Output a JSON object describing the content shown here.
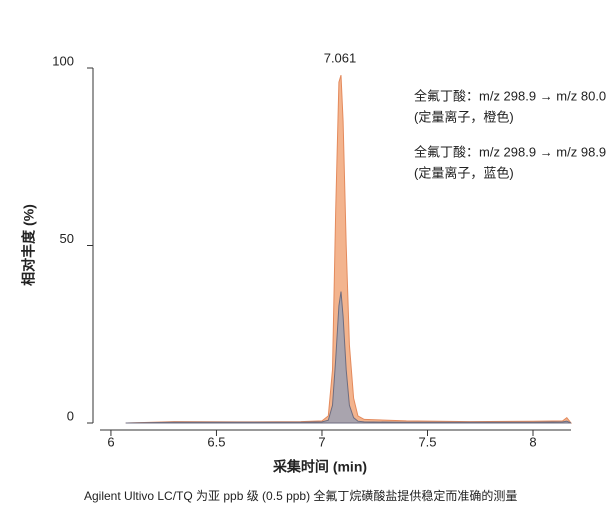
{
  "chart_data": {
    "type": "area",
    "peak_label": "7.061",
    "y_label": "相对丰度 (%)",
    "x_label": "采集时间 (min)",
    "caption": "Agilent Ultivo LC/TQ 为亚 ppb 级 (0.5 ppb) 全氟丁烷磺酸盐提供稳定而准确的测量",
    "x": [
      6.07,
      6.3,
      6.6,
      6.9,
      7.0,
      7.03,
      7.05,
      7.065,
      7.08,
      7.09,
      7.1,
      7.115,
      7.13,
      7.15,
      7.17,
      7.2,
      7.4,
      7.7,
      8.0,
      8.14,
      8.16,
      8.18
    ],
    "series": [
      {
        "name": "全氟丁酸：m/z 298.9 → m/z 80.0",
        "note": "(定量离子，橙色)",
        "color": "#f3b48e",
        "stroke": "#e48a5c",
        "values": [
          0,
          0.4,
          0.3,
          0.4,
          0.6,
          2,
          15,
          60,
          96,
          98,
          85,
          50,
          22,
          7,
          2,
          1,
          0.6,
          0.4,
          0.5,
          0.6,
          1.5,
          0
        ]
      },
      {
        "name": "全氟丁酸：m/z 298.9 → m/z 98.9",
        "note": "(定量离子，蓝色)",
        "color": "#a4a3b0",
        "stroke": "#6e6d80",
        "values": [
          0,
          0.2,
          0.2,
          0.2,
          0.3,
          0.8,
          5,
          18,
          33,
          37,
          30,
          15,
          5,
          1.5,
          0.5,
          0.3,
          0.2,
          0.2,
          0.2,
          0.3,
          0.5,
          0
        ]
      }
    ],
    "xlim": [
      5.915,
      8.18
    ],
    "xticks": [
      6,
      6.5,
      7,
      7.5,
      8
    ],
    "ylim": [
      0,
      100
    ],
    "yticks": [
      0,
      50,
      100
    ]
  }
}
